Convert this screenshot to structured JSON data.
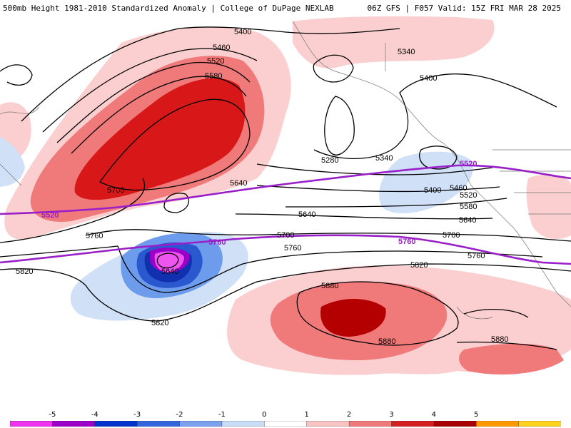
{
  "header": {
    "left": "500mb Height 1981-2010 Standardized Anomaly | College of DuPage NEXLAB",
    "right": "06Z GFS | F057 Valid: 15Z FRI MAR 28 2025"
  },
  "contours": {
    "black": {
      "c5280": "5280",
      "c5340_a": "5340",
      "c5340_b": "5340",
      "c5400_a": "5400",
      "c5400_b": "5400",
      "c5400_c": "5400",
      "c5460_a": "5460",
      "c5460_b": "5460",
      "c5520_a": "5520",
      "c5520_b": "5520",
      "c5580_a": "5580",
      "c5580_b": "5580",
      "c5640_a": "5640",
      "c5640_b": "5640",
      "c5640_c": "5640",
      "c5640_d": "5640",
      "c5700_a": "5700",
      "c5700_b": "5700",
      "c5700_c": "5700",
      "c5760_a": "5760",
      "c5760_b": "5760",
      "c5760_c": "5760",
      "c5820_a": "5820",
      "c5820_b": "5820",
      "c5820_c": "5820",
      "c5880_a": "5880",
      "c5880_b": "5880",
      "c5880_c": "5880"
    },
    "purple": {
      "p5520_a": "5520",
      "p5520_b": "5520",
      "p5760_a": "5760",
      "p5760_b": "5760"
    }
  },
  "legend": {
    "labels": [
      "-5",
      "-4",
      "-3",
      "-2",
      "-1",
      "0",
      "1",
      "2",
      "3",
      "4",
      "5"
    ],
    "colors": [
      "#ee33ee",
      "#9b00c8",
      "#0033cc",
      "#3366dd",
      "#7aa0ee",
      "#c8dcf6",
      "#ffffff",
      "#f9c3c3",
      "#f07a7a",
      "#d42020",
      "#a80000",
      "#ff9900",
      "#ffd21e"
    ]
  },
  "colors": {
    "anomaly_pos_light": "#fbcfcf",
    "anomaly_pos_mid": "#f07a7a",
    "anomaly_pos_strong": "#d81818",
    "anomaly_pos_max": "#b40000",
    "anomaly_neg_light": "#cfe0f7",
    "anomaly_neg_mid": "#6e9cec",
    "anomaly_neg_strong": "#2a58cf",
    "anomaly_neg_deep": "#1030b0",
    "anomaly_neg_purple": "#9b00c8",
    "anomaly_neg_magenta": "#ee55ee",
    "reference_contour": "#9a1fc9"
  }
}
